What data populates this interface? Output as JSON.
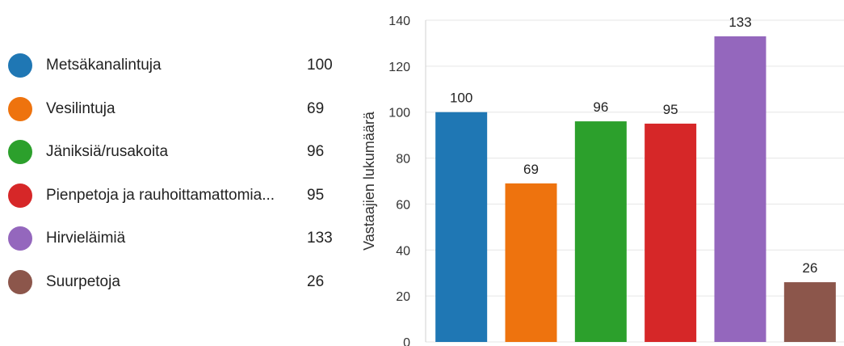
{
  "chart_data": {
    "type": "bar",
    "categories": [
      "Metsäkanalintuja",
      "Vesilintuja",
      "Jäniksiä/rusakoita",
      "Pienpetoja ja rauhoittamattomia...",
      "Hirvieläimiä",
      "Suurpetoja"
    ],
    "values": [
      100,
      69,
      96,
      95,
      133,
      26
    ],
    "colors": [
      "#1f77b4",
      "#ee730e",
      "#2ca02c",
      "#d62728",
      "#9467bd",
      "#8c564b"
    ],
    "title": "",
    "xlabel": "",
    "ylabel": "Vastaajien lukumäärä",
    "ylim": [
      0,
      140
    ],
    "yticks": [
      0,
      20,
      40,
      60,
      80,
      100,
      120,
      140
    ],
    "grid": true,
    "legend_placement": "left"
  }
}
